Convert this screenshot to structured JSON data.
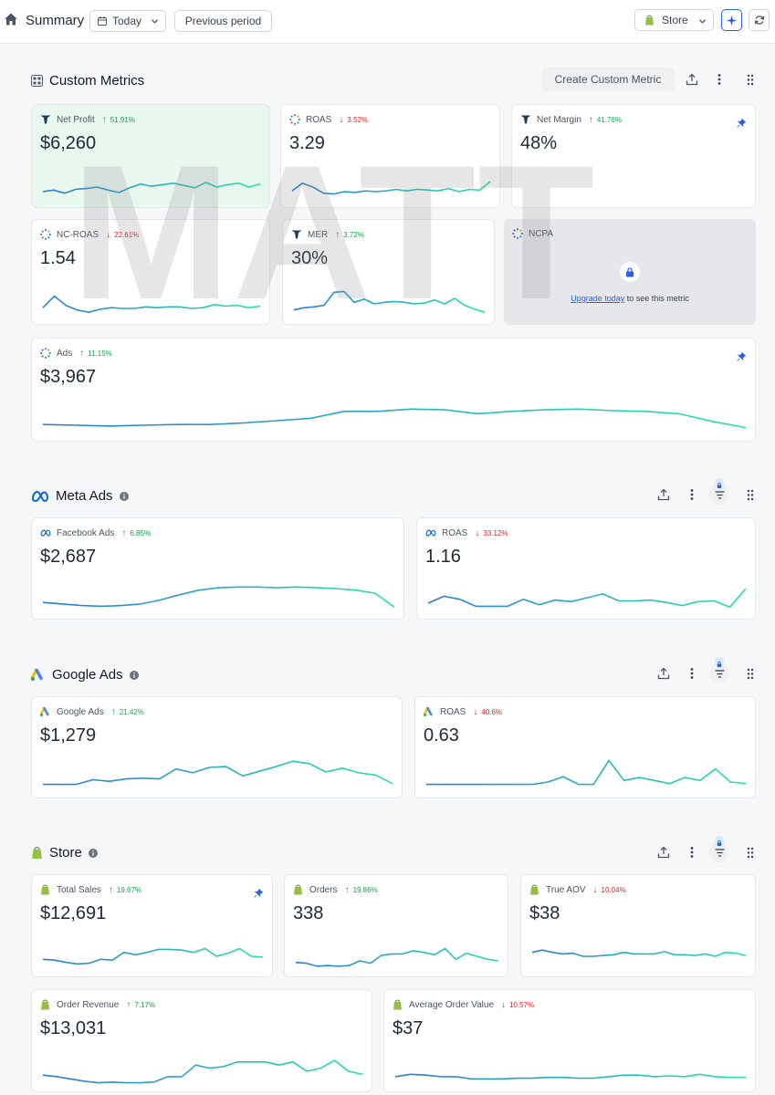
{
  "topbar": {
    "title": "Summary",
    "date_button": "Today",
    "compare_button": "Previous period",
    "store_button": "Store"
  },
  "custom_metrics": {
    "title": "Custom Metrics",
    "create_button": "Create Custom Metric",
    "cards": [
      {
        "name": "Net Profit",
        "delta": "51.91%",
        "direction": "up",
        "value": "$6,260",
        "icon": "triple-whale-icon",
        "pinned": false,
        "trend": [
          13,
          15,
          11,
          16,
          17,
          19,
          15,
          12,
          18,
          23,
          20,
          22,
          24,
          21,
          18,
          25,
          19,
          22,
          24,
          19,
          23
        ]
      },
      {
        "name": "ROAS",
        "delta": "3.52%",
        "direction": "down",
        "value": "3.29",
        "icon": "loading-dots-icon",
        "pinned": false,
        "trend": [
          14,
          24,
          19,
          11,
          10,
          13,
          12,
          14,
          13,
          14,
          16,
          14,
          16,
          15,
          14,
          17,
          13,
          16,
          15,
          26
        ]
      },
      {
        "name": "Net Margin",
        "delta": "41.76%",
        "direction": "up",
        "value": "48%",
        "icon": "triple-whale-icon",
        "pinned": true,
        "trend": []
      },
      {
        "name": "NC-ROAS",
        "delta": "22.61%",
        "direction": "down",
        "value": "1.54",
        "icon": "loading-dots-icon",
        "pinned": false,
        "trend": [
          14,
          29,
          17,
          11,
          8,
          12,
          14,
          13,
          13,
          15,
          14,
          15,
          15,
          13,
          14,
          18,
          16,
          17,
          14,
          16
        ]
      },
      {
        "name": "MER",
        "delta": "3.72%",
        "direction": "up",
        "value": "30%",
        "icon": "triple-whale-icon",
        "pinned": false,
        "trend": [
          11,
          14,
          15,
          17,
          34,
          35,
          21,
          25,
          19,
          21,
          22,
          21,
          19,
          20,
          24,
          19,
          26,
          17,
          12,
          8
        ]
      },
      {
        "name": "Ads",
        "delta": "11.15%",
        "direction": "up",
        "value": "$3,967",
        "icon": "loading-dots-icon",
        "pinned": true,
        "trend": [
          14,
          13,
          12,
          13,
          14,
          14,
          16,
          19,
          22,
          31,
          31,
          34,
          33,
          28,
          31,
          33,
          34,
          32,
          31,
          28,
          18,
          10
        ]
      }
    ],
    "locked_card": {
      "name": "NCPA",
      "icon": "loading-dots-icon",
      "upgrade_link": "Upgrade today",
      "upgrade_text": " to see this metric"
    }
  },
  "meta_ads": {
    "title": "Meta Ads",
    "cards": [
      {
        "name": "Facebook Ads",
        "delta": "6.85%",
        "direction": "up",
        "value": "$2,687",
        "icon": "meta-icon",
        "trend": [
          14,
          12,
          10,
          9,
          10,
          12,
          17,
          24,
          30,
          33,
          34,
          34,
          33,
          34,
          33,
          32,
          30,
          26,
          8
        ]
      },
      {
        "name": "ROAS",
        "delta": "33.12%",
        "direction": "down",
        "value": "1.16",
        "icon": "meta-icon",
        "trend": [
          13,
          22,
          18,
          9,
          9,
          9,
          18,
          11,
          17,
          15,
          20,
          25,
          16,
          16,
          17,
          14,
          10,
          15,
          16,
          8,
          32
        ]
      }
    ]
  },
  "google_ads": {
    "title": "Google Ads",
    "cards": [
      {
        "name": "Google Ads",
        "delta": "21.42%",
        "direction": "up",
        "value": "$1,279",
        "icon": "google-ads-icon",
        "trend": [
          10,
          10,
          10,
          16,
          14,
          17,
          18,
          17,
          30,
          25,
          32,
          33,
          21,
          27,
          33,
          40,
          37,
          26,
          31,
          25,
          22,
          11
        ]
      },
      {
        "name": "ROAS",
        "delta": "40.6%",
        "direction": "down",
        "value": "0.63",
        "icon": "google-ads-icon",
        "trend": [
          10,
          10,
          10,
          10,
          10,
          10,
          10,
          10,
          13,
          20,
          10,
          10,
          41,
          15,
          19,
          15,
          11,
          19,
          15,
          30,
          13,
          11
        ]
      }
    ]
  },
  "store": {
    "title": "Store",
    "cards": [
      {
        "name": "Total Sales",
        "delta": "19.67%",
        "direction": "up",
        "value": "$12,691",
        "icon": "shopify-icon",
        "pinned": true,
        "trend": [
          15,
          14,
          11,
          9,
          10,
          15,
          14,
          24,
          21,
          24,
          28,
          28,
          27,
          24,
          29,
          19,
          23,
          29,
          19,
          18
        ]
      },
      {
        "name": "Orders",
        "delta": "19.86%",
        "direction": "up",
        "value": "338",
        "icon": "shopify-icon",
        "pinned": false,
        "trend": [
          11,
          10,
          6,
          7,
          6,
          7,
          13,
          10,
          20,
          22,
          22,
          26,
          24,
          21,
          29,
          15,
          23,
          19,
          15,
          13
        ]
      },
      {
        "name": "True AOV",
        "delta": "10.04%",
        "direction": "down",
        "value": "$38",
        "icon": "shopify-icon",
        "pinned": false,
        "trend": [
          24,
          27,
          24,
          22,
          23,
          19,
          19,
          20,
          21,
          24,
          22,
          22,
          22,
          25,
          21,
          21,
          20,
          22,
          19,
          24,
          23,
          20
        ]
      },
      {
        "name": "Order Revenue",
        "delta": "7.17%",
        "direction": "up",
        "value": "$13,031",
        "icon": "shopify-icon",
        "pinned": false,
        "trend": [
          14,
          12,
          9,
          6,
          4,
          5,
          4,
          4,
          5,
          12,
          12,
          27,
          23,
          25,
          31,
          31,
          31,
          27,
          31,
          19,
          23,
          33,
          19,
          15
        ]
      },
      {
        "name": "Average Order Value",
        "delta": "10.57%",
        "direction": "down",
        "value": "$37",
        "icon": "shopify-icon",
        "pinned": false,
        "trend": [
          12,
          15,
          14,
          12,
          12,
          9,
          9,
          9,
          10,
          10,
          11,
          11,
          10,
          10,
          12,
          14,
          14,
          12,
          13,
          12,
          15,
          12,
          11,
          11
        ]
      }
    ]
  },
  "watermark": "MATT",
  "colors": {
    "accent": "#2563eb",
    "up": "#16a34a",
    "down": "#dc2626",
    "line_start": "#2b7bd8",
    "line_end": "#27e2a8"
  }
}
